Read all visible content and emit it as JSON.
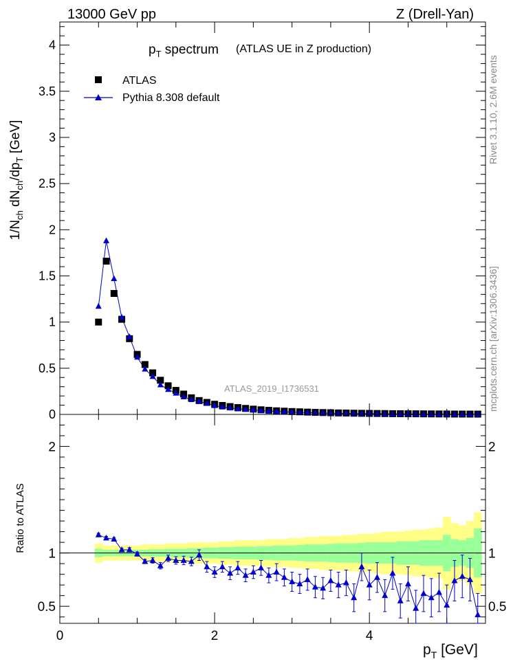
{
  "header": {
    "left": "13000 GeV pp",
    "right": "Z (Drell-Yan)"
  },
  "side": {
    "rivet": "Rivet 3.1.10, 2.6M events",
    "mcplots": "mcplots.cern.ch [arXiv:1306.3436]"
  },
  "colors": {
    "data": "#000000",
    "mc": "#0000cc",
    "band_inner": "#99ff99",
    "band_outer": "#ffff88"
  },
  "chart_data": [
    {
      "type": "scatter",
      "panel": "main",
      "title_main": "p",
      "title_sub": "T",
      "title_rest": " spectrum",
      "title_note": "(ATLAS UE in Z production)",
      "ylabel": "1/N_ch dN_ch/dp_T [GeV]",
      "ylabel_parts": [
        "1/N",
        "ch",
        " dN",
        "ch",
        "/dp",
        "T",
        " [GeV]"
      ],
      "analysis_id": "ATLAS_2019_I1736531",
      "xlim": [
        0,
        5.5
      ],
      "ylim": [
        0,
        4.25
      ],
      "yticks": [
        0,
        0.5,
        1,
        1.5,
        2,
        2.5,
        3,
        3.5,
        4
      ],
      "yticklabels": [
        "0",
        "0.5",
        "1",
        "1.5",
        "2",
        "2.5",
        "3",
        "3.5",
        "4"
      ],
      "legend": [
        {
          "name": "ATLAS",
          "marker": "square"
        },
        {
          "name": "Pythia 8.308 default",
          "marker": "triangle"
        }
      ],
      "x": [
        0.5,
        0.6,
        0.7,
        0.8,
        0.9,
        1.0,
        1.1,
        1.2,
        1.3,
        1.4,
        1.5,
        1.6,
        1.7,
        1.8,
        1.9,
        2.0,
        2.1,
        2.2,
        2.3,
        2.4,
        2.5,
        2.6,
        2.7,
        2.8,
        2.9,
        3.0,
        3.1,
        3.2,
        3.3,
        3.4,
        3.5,
        3.6,
        3.7,
        3.8,
        3.9,
        4.0,
        4.1,
        4.2,
        4.3,
        4.4,
        4.5,
        4.6,
        4.7,
        4.8,
        4.9,
        5.0,
        5.1,
        5.2,
        5.3,
        5.4
      ],
      "series": [
        {
          "name": "ATLAS",
          "values": [
            1.0,
            1.66,
            1.31,
            1.03,
            0.82,
            0.65,
            0.54,
            0.45,
            0.37,
            0.31,
            0.26,
            0.22,
            0.18,
            0.15,
            0.13,
            0.11,
            0.097,
            0.085,
            0.074,
            0.065,
            0.057,
            0.05,
            0.044,
            0.039,
            0.035,
            0.031,
            0.028,
            0.025,
            0.022,
            0.02,
            0.018,
            0.016,
            0.015,
            0.013,
            0.012,
            0.011,
            0.01,
            0.009,
            0.008,
            0.0075,
            0.007,
            0.0065,
            0.006,
            0.0055,
            0.005,
            0.0045,
            0.004,
            0.0038,
            0.0035,
            0.0033
          ]
        },
        {
          "name": "Pythia 8.308 default",
          "values": [
            1.17,
            1.88,
            1.47,
            1.05,
            0.84,
            0.62,
            0.49,
            0.41,
            0.32,
            0.27,
            0.23,
            0.19,
            0.16,
            0.14,
            0.12,
            0.095,
            0.08,
            0.07,
            0.06,
            0.055,
            0.048,
            0.042,
            0.036,
            0.033,
            0.028,
            0.024,
            0.021,
            0.02,
            0.016,
            0.015,
            0.013,
            0.011,
            0.012,
            0.01,
            0.009,
            0.008,
            0.008,
            0.006,
            0.006,
            0.005,
            0.005,
            0.004,
            0.004,
            0.004,
            0.003,
            0.003,
            0.003,
            0.003,
            0.002,
            0.002
          ]
        }
      ]
    },
    {
      "type": "scatter",
      "panel": "ratio",
      "ylabel": "Ratio to ATLAS",
      "xlabel_main": "p",
      "xlabel_sub": "T",
      "xlabel_rest": " [GeV]",
      "xlim": [
        0,
        5.5
      ],
      "ylim": [
        0.34,
        2.3
      ],
      "xticks": [
        0,
        2,
        4
      ],
      "xticklabels": [
        "0",
        "2",
        "4"
      ],
      "yticks": [
        0.5,
        1,
        2
      ],
      "yticklabels": [
        "0.5",
        "1",
        "2"
      ],
      "reference": 1,
      "x": [
        0.5,
        0.6,
        0.7,
        0.8,
        0.9,
        1.0,
        1.1,
        1.2,
        1.3,
        1.4,
        1.5,
        1.6,
        1.7,
        1.8,
        1.9,
        2.0,
        2.1,
        2.2,
        2.3,
        2.4,
        2.5,
        2.6,
        2.7,
        2.8,
        2.9,
        3.0,
        3.1,
        3.2,
        3.3,
        3.4,
        3.5,
        3.6,
        3.7,
        3.8,
        3.9,
        4.0,
        4.1,
        4.2,
        4.3,
        4.4,
        4.5,
        4.6,
        4.7,
        4.8,
        4.9,
        5.0,
        5.1,
        5.2,
        5.3,
        5.4
      ],
      "band_inner": [
        0.04,
        0.03,
        0.03,
        0.03,
        0.03,
        0.03,
        0.03,
        0.035,
        0.035,
        0.04,
        0.04,
        0.04,
        0.045,
        0.045,
        0.05,
        0.05,
        0.055,
        0.055,
        0.06,
        0.06,
        0.06,
        0.065,
        0.065,
        0.07,
        0.07,
        0.07,
        0.075,
        0.08,
        0.08,
        0.08,
        0.085,
        0.09,
        0.09,
        0.09,
        0.095,
        0.1,
        0.1,
        0.1,
        0.1,
        0.11,
        0.11,
        0.11,
        0.12,
        0.12,
        0.12,
        0.17,
        0.13,
        0.12,
        0.14,
        0.23
      ],
      "band_outer": [
        0.09,
        0.07,
        0.07,
        0.07,
        0.07,
        0.07,
        0.08,
        0.08,
        0.08,
        0.09,
        0.09,
        0.09,
        0.1,
        0.1,
        0.1,
        0.1,
        0.11,
        0.11,
        0.12,
        0.12,
        0.12,
        0.12,
        0.13,
        0.13,
        0.13,
        0.14,
        0.14,
        0.15,
        0.15,
        0.16,
        0.16,
        0.16,
        0.17,
        0.17,
        0.18,
        0.18,
        0.19,
        0.2,
        0.2,
        0.2,
        0.21,
        0.22,
        0.22,
        0.23,
        0.24,
        0.34,
        0.28,
        0.26,
        0.3,
        0.38
      ],
      "series": [
        {
          "name": "Pythia 8.308 default",
          "values": [
            1.17,
            1.14,
            1.13,
            1.03,
            1.03,
            0.99,
            0.92,
            0.93,
            0.88,
            0.95,
            0.93,
            0.93,
            0.92,
            0.98,
            0.87,
            0.82,
            0.87,
            0.81,
            0.86,
            0.79,
            0.82,
            0.86,
            0.79,
            0.82,
            0.77,
            0.73,
            0.71,
            0.75,
            0.68,
            0.67,
            0.74,
            0.7,
            0.72,
            0.58,
            0.87,
            0.7,
            0.77,
            0.6,
            0.81,
            0.55,
            0.71,
            0.48,
            0.62,
            0.58,
            0.63,
            0.51,
            0.74,
            0.78,
            0.75,
            0.42
          ],
          "errors": [
            0.015,
            0.015,
            0.015,
            0.015,
            0.02,
            0.02,
            0.02,
            0.025,
            0.03,
            0.03,
            0.035,
            0.04,
            0.04,
            0.05,
            0.05,
            0.05,
            0.05,
            0.06,
            0.06,
            0.06,
            0.06,
            0.07,
            0.07,
            0.08,
            0.08,
            0.09,
            0.09,
            0.1,
            0.1,
            0.1,
            0.1,
            0.12,
            0.12,
            0.13,
            0.13,
            0.14,
            0.14,
            0.15,
            0.15,
            0.16,
            0.16,
            0.17,
            0.17,
            0.18,
            0.18,
            0.19,
            0.19,
            0.2,
            0.2,
            0.2
          ]
        }
      ]
    }
  ]
}
